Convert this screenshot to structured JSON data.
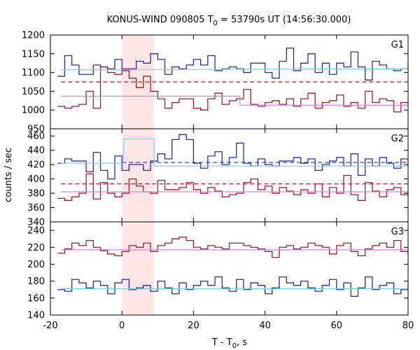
{
  "chart_data": {
    "type": "line",
    "title_main": "KONUS-WIND 090805 T",
    "title_sub": "0",
    "title_rest": " = 53790s UT (14:56:30.000)",
    "xlabel_main": "T - T",
    "xlabel_sub": "0",
    "xlabel_rest": ", s",
    "ylabel": "counts / sec",
    "xlim": [
      -20,
      80
    ],
    "xticks": [
      -20,
      0,
      20,
      40,
      60,
      80
    ],
    "shaded_region": {
      "x": [
        0,
        9
      ],
      "color": "#ffe6e6"
    },
    "colors": {
      "blue": "#2b2ba0",
      "red": "#a01d26",
      "cyan": "#7fd0e8",
      "pink": "#e27fe0"
    },
    "panels": [
      {
        "name": "G1",
        "ylim": [
          950,
          1200
        ],
        "yticks": [
          950,
          1000,
          1050,
          1100,
          1150,
          1200
        ],
        "bin_width": 2,
        "x_start": -18,
        "series": [
          {
            "color": "blue",
            "values": [
              1090,
              1145,
              1120,
              1095,
              1095,
              1120,
              1115,
              1110,
              1135,
              1105,
              1110,
              1130,
              1125,
              1150,
              1135,
              1095,
              1115,
              1110,
              1120,
              1135,
              1120,
              1145,
              1105,
              1110,
              1115,
              1110,
              1100,
              1125,
              1125,
              1100,
              1085,
              1130,
              1165,
              1105,
              1125,
              1150,
              1100,
              1125,
              1095,
              1125,
              1115,
              1155,
              1115,
              1080,
              1130,
              1120,
              1110,
              1105,
              1110,
              1130,
              1135,
              1115,
              1115,
              1125,
              1105,
              1125,
              1130,
              1125,
              1120,
              1115
            ]
          },
          {
            "color": "red",
            "values": [
              1010,
              1005,
              1010,
              1015,
              1050,
              1005,
              1115,
              1100,
              1095,
              1110,
              1085,
              1060,
              1090,
              1050,
              1030,
              1005,
              1020,
              1030,
              1030,
              1005,
              1000,
              1030,
              1045,
              1015,
              1025,
              1030,
              1055,
              1015,
              1010,
              1020,
              1025,
              1015,
              1030,
              1010,
              1030,
              1045,
              1005,
              1020,
              1025,
              1040,
              1010,
              1020,
              1005,
              1050,
              1020,
              1030,
              1025,
              995,
              1020,
              1025,
              1030,
              1030,
              1045,
              1020,
              1030,
              1035,
              1025,
              1030,
              1025,
              1020
            ]
          }
        ],
        "fits": [
          {
            "color": "cyan",
            "style": "solid",
            "segments": [
              [
                [
                  -17,
                  1107
                ],
                [
                  80,
                  1110
                ]
              ]
            ]
          },
          {
            "color": "red",
            "style": "dashed",
            "segments": [
              [
                [
                  -17,
                  1075
                ],
                [
                  80,
                  1075
                ]
              ]
            ]
          },
          {
            "color": "pink",
            "style": "solid",
            "segments": [
              [
                [
                  -17,
                  1037
                ],
                [
                  33,
                  1037
                ]
              ],
              [
                [
                  33,
                  1013
                ],
                [
                  80,
                  1013
                ]
              ]
            ]
          }
        ],
        "label": "G1"
      },
      {
        "name": "G2",
        "ylim": [
          340,
          470
        ],
        "yticks": [
          340,
          360,
          380,
          400,
          420,
          440,
          460
        ],
        "bin_width": 2,
        "x_start": -18,
        "series": [
          {
            "color": "blue",
            "values": [
              422,
              428,
              425,
              425,
              410,
              437,
              412,
              400,
              432,
              412,
              420,
              420,
              412,
              425,
              435,
              428,
              455,
              462,
              455,
              422,
              415,
              432,
              438,
              420,
              430,
              450,
              422,
              418,
              428,
              420,
              418,
              425,
              425,
              430,
              422,
              428,
              412,
              420,
              425,
              430,
              418,
              435,
              405,
              428,
              418,
              430,
              422,
              415,
              428,
              418,
              435,
              420,
              422,
              415,
              430,
              425,
              425,
              420,
              422,
              428
            ]
          },
          {
            "color": "red",
            "values": [
              373,
              370,
              375,
              380,
              407,
              372,
              395,
              380,
              375,
              380,
              400,
              390,
              382,
              380,
              398,
              385,
              385,
              388,
              395,
              385,
              380,
              388,
              383,
              375,
              378,
              380,
              395,
              400,
              385,
              390,
              380,
              388,
              383,
              378,
              385,
              380,
              393,
              375,
              388,
              380,
              405,
              378,
              370,
              395,
              383,
              375,
              385,
              388,
              378,
              383,
              375,
              385,
              378,
              392,
              380,
              375,
              385,
              375,
              383,
              378
            ]
          }
        ],
        "fits": [
          {
            "color": "cyan",
            "style": "solid",
            "segments": [
              [
                [
                  -17,
                  422
                ],
                [
                  0.5,
                  422
                ]
              ],
              [
                [
                  0.5,
                  456
                ],
                [
                  9,
                  456
                ]
              ],
              [
                [
                  9,
                  418
                ],
                [
                  80,
                  418
                ]
              ]
            ]
          },
          {
            "color": "blue",
            "style": "dashed",
            "segments": [
              [
                [
                  0,
                  423
                ],
                [
                  80,
                  423
                ]
              ]
            ]
          },
          {
            "color": "red",
            "style": "dashed",
            "segments": [
              [
                [
                  -17,
                  393
                ],
                [
                  80,
                  393
                ]
              ]
            ]
          },
          {
            "color": "pink",
            "style": "solid",
            "segments": [
              [
                [
                  -17,
                  382
                ],
                [
                  80,
                  382
                ]
              ]
            ]
          }
        ],
        "label": "G2"
      },
      {
        "name": "G3",
        "ylim": [
          140,
          250
        ],
        "yticks": [
          140,
          160,
          180,
          200,
          220,
          240
        ],
        "bin_width": 2,
        "x_start": -18,
        "series": [
          {
            "color": "red",
            "values": [
              213,
              218,
              225,
              222,
              228,
              220,
              216,
              212,
              210,
              215,
              222,
              220,
              225,
              215,
              222,
              225,
              230,
              232,
              228,
              220,
              218,
              222,
              220,
              218,
              225,
              225,
              222,
              220,
              218,
              215,
              208,
              220,
              222,
              218,
              220,
              225,
              222,
              220,
              212,
              222,
              225,
              215,
              210,
              218,
              222,
              225,
              220,
              228,
              215,
              212,
              218,
              222,
              215,
              220,
              222,
              218,
              225,
              228,
              220,
              215
            ]
          },
          {
            "color": "blue",
            "values": [
              170,
              168,
              182,
              178,
              172,
              180,
              175,
              165,
              178,
              182,
              170,
              172,
              175,
              168,
              180,
              172,
              165,
              178,
              170,
              175,
              180,
              175,
              185,
              172,
              168,
              182,
              170,
              178,
              175,
              165,
              172,
              185,
              178,
              175,
              180,
              172,
              168,
              175,
              182,
              170,
              178,
              162,
              172,
              185,
              170,
              175,
              178,
              165,
              170,
              178,
              172,
              180,
              170,
              165,
              178,
              172,
              175,
              170,
              178,
              172
            ]
          }
        ],
        "fits": [
          {
            "color": "cyan",
            "style": "solid",
            "segments": [
              [
                [
                  -17,
                  171
                ],
                [
                  80,
                  171
                ]
              ]
            ]
          },
          {
            "color": "pink",
            "style": "solid",
            "segments": [
              [
                [
                  -17,
                  217
                ],
                [
                  80,
                  217
                ]
              ]
            ]
          }
        ],
        "label": "G3"
      }
    ]
  }
}
